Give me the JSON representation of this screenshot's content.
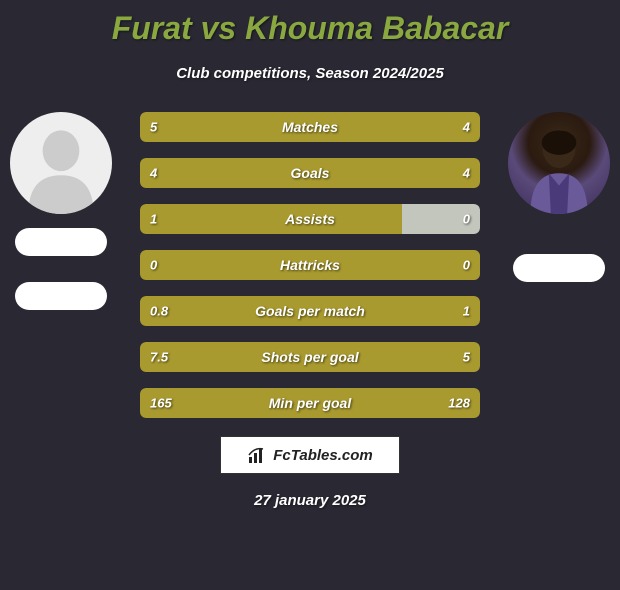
{
  "title": "Furat vs Khouma Babacar",
  "subtitle": "Club competitions, Season 2024/2025",
  "date": "27 january 2025",
  "logo_text": "FcTables.com",
  "colors": {
    "background": "#2a2933",
    "title_color": "#8aa840",
    "text_color": "#ffffff",
    "left_fill": "#a99a2f",
    "right_fill": "#c0b550",
    "right_fill_alt": "#b7bdb0",
    "neutral_fill": "#a99a2f"
  },
  "player_left": {
    "name": "Furat",
    "avatar_bg": "#eeeeee"
  },
  "player_right": {
    "name": "Khouma Babacar",
    "avatar_bg": "#5a4a7a"
  },
  "stats": [
    {
      "label": "Matches",
      "left_val": "5",
      "right_val": "4",
      "left_pct": 55.5,
      "right_pct": 44.5,
      "left_color": "#a99a2f",
      "right_color": "#a99a2f"
    },
    {
      "label": "Goals",
      "left_val": "4",
      "right_val": "4",
      "left_pct": 50,
      "right_pct": 50,
      "left_color": "#a99a2f",
      "right_color": "#a99a2f"
    },
    {
      "label": "Assists",
      "left_val": "1",
      "right_val": "0",
      "left_pct": 77,
      "right_pct": 23,
      "left_color": "#a99a2f",
      "right_color": "#c3c6bc"
    },
    {
      "label": "Hattricks",
      "left_val": "0",
      "right_val": "0",
      "left_pct": 100,
      "right_pct": 0,
      "left_color": "#a99a2f",
      "right_color": "#a99a2f"
    },
    {
      "label": "Goals per match",
      "left_val": "0.8",
      "right_val": "1",
      "left_pct": 44.5,
      "right_pct": 55.5,
      "left_color": "#a99a2f",
      "right_color": "#a99a2f"
    },
    {
      "label": "Shots per goal",
      "left_val": "7.5",
      "right_val": "5",
      "left_pct": 60,
      "right_pct": 40,
      "left_color": "#a99a2f",
      "right_color": "#a99a2f"
    },
    {
      "label": "Min per goal",
      "left_val": "165",
      "right_val": "128",
      "left_pct": 56.3,
      "right_pct": 43.7,
      "left_color": "#a99a2f",
      "right_color": "#a99a2f"
    }
  ]
}
